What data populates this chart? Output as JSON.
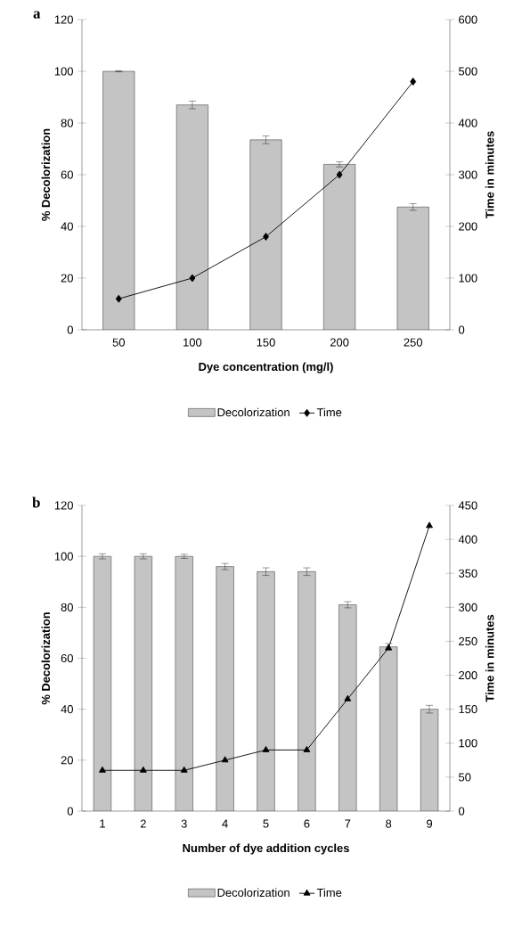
{
  "chart_data": [
    {
      "type": "bar",
      "title": "a",
      "xlabel": "Dye concentration (mg/l)",
      "ylabel": "% Decolorization",
      "y2label": "Time in minutes",
      "categories": [
        "50",
        "100",
        "150",
        "200",
        "250"
      ],
      "series": [
        {
          "name": "Decolorization",
          "color": "#c4c4c4",
          "values": [
            100,
            87,
            73.5,
            64,
            47.5
          ],
          "errors": [
            0.2,
            1.5,
            1.5,
            1,
            1.3
          ]
        },
        {
          "name": "Time",
          "type": "line",
          "axis": "y2",
          "color": "#000000",
          "marker": "diamond",
          "values": [
            60,
            100,
            180,
            300,
            480
          ]
        }
      ],
      "ylim": [
        0,
        120
      ],
      "yticks": [
        0,
        20,
        40,
        60,
        80,
        100,
        120
      ],
      "y2lim": [
        0,
        600
      ],
      "y2ticks": [
        0,
        100,
        200,
        300,
        400,
        500,
        600
      ],
      "legend": "bottom"
    },
    {
      "type": "bar",
      "title": "b",
      "xlabel": "Number of dye addition cycles",
      "ylabel": "% Decolorization",
      "y2label": "Time in minutes",
      "categories": [
        "1",
        "2",
        "3",
        "4",
        "5",
        "6",
        "7",
        "8",
        "9"
      ],
      "series": [
        {
          "name": "Decolorization",
          "color": "#c4c4c4",
          "values": [
            100,
            100,
            100,
            96,
            94,
            94,
            81,
            64.5,
            40
          ],
          "errors": [
            1,
            1,
            0.8,
            1.2,
            1.5,
            1.5,
            1.2,
            1.3,
            1.5
          ]
        },
        {
          "name": "Time",
          "type": "line",
          "axis": "y2",
          "color": "#000000",
          "marker": "triangle",
          "values": [
            60,
            60,
            60,
            75,
            90,
            90,
            165,
            240,
            420
          ]
        }
      ],
      "ylim": [
        0,
        120
      ],
      "yticks": [
        0,
        20,
        40,
        60,
        80,
        100,
        120
      ],
      "y2lim": [
        0,
        450
      ],
      "y2ticks": [
        0,
        50,
        100,
        150,
        200,
        250,
        300,
        350,
        400,
        450
      ],
      "legend": "bottom"
    }
  ]
}
